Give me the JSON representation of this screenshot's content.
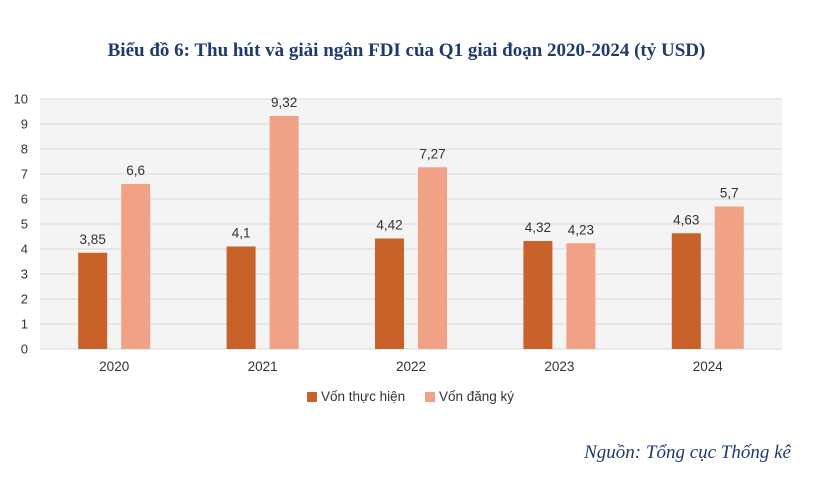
{
  "header": {
    "title": "Biểu đồ 6: Thu hút và giải ngân FDI của Q1 giai đoạn 2020-2024 (tỷ USD)"
  },
  "footer": {
    "source": "Nguồn: Tổng cục Thống kê"
  },
  "chart_data": {
    "type": "bar",
    "title": "Biểu đồ 6: Thu hút và giải ngân FDI của Q1 giai đoạn 2020-2024 (tỷ USD)",
    "categories": [
      "2020",
      "2021",
      "2022",
      "2023",
      "2024"
    ],
    "series": [
      {
        "name": "Vốn thực hiện",
        "values": [
          3.85,
          4.1,
          4.42,
          4.32,
          4.63
        ],
        "labels": [
          "3,85",
          "4,1",
          "4,42",
          "4,32",
          "4,63"
        ],
        "color": "#c8622a"
      },
      {
        "name": "Vốn đăng ký",
        "values": [
          6.6,
          9.32,
          7.27,
          4.23,
          5.7
        ],
        "labels": [
          "6,6",
          "9,32",
          "7,27",
          "4,23",
          "5,7"
        ],
        "color": "#f0a186"
      }
    ],
    "xlabel": "",
    "ylabel": "",
    "ylim": [
      0,
      10
    ],
    "yticks": [
      "0",
      "1",
      "2",
      "3",
      "4",
      "5",
      "6",
      "7",
      "8",
      "9",
      "10"
    ],
    "grid": true,
    "grid_color": "#d9d9d9",
    "legend_position": "bottom"
  }
}
